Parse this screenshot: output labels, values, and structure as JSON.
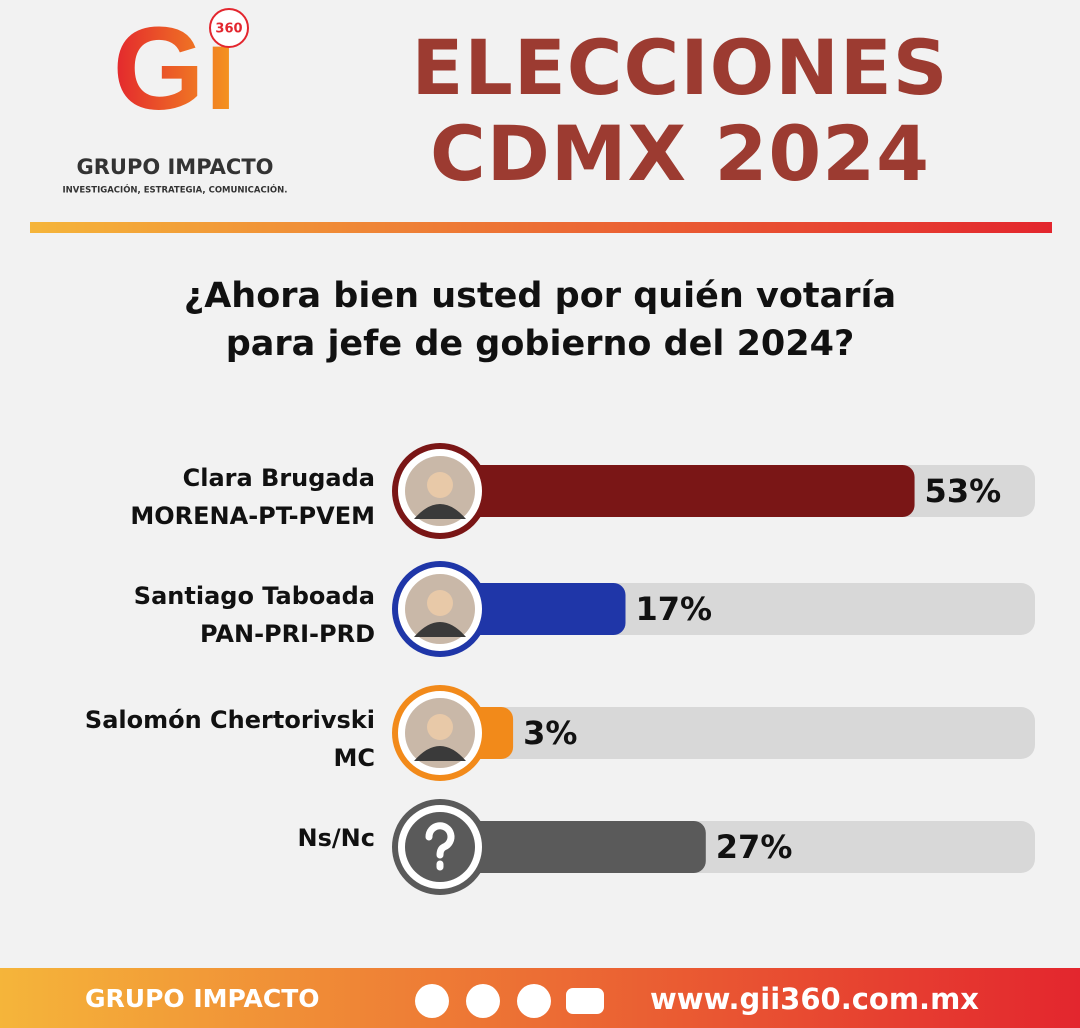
{
  "header": {
    "logo_mark": "Gi",
    "logo_badge": "360",
    "brand": "GRUPO IMPACTO",
    "tagline": "INVESTIGACIÓN, ESTRATEGIA, COMUNICACIÓN."
  },
  "chart_data": {
    "type": "bar",
    "title": "ELECCIONES CDMX 2024",
    "subtitle": "¿Ahora bien usted por quién votaría para jefe de gobierno del 2024?",
    "categories": [
      "Clara Brugada",
      "Santiago Taboada",
      "Salomón Chertorivski",
      "Ns/Nc"
    ],
    "coalitions": [
      "MORENA-PT-PVEM",
      "PAN-PRI-PRD",
      "MC",
      null
    ],
    "values": [
      53,
      17,
      3,
      27
    ],
    "value_labels": [
      "53%",
      "17%",
      "3%",
      "27%"
    ],
    "colors": [
      "#7a1616",
      "#1f36a8",
      "#f28a1a",
      "#5a5a5a"
    ],
    "xlim": [
      0,
      68
    ]
  },
  "footer": {
    "brand": "GRUPO IMPACTO",
    "url": "www.gii360.com.mx"
  }
}
